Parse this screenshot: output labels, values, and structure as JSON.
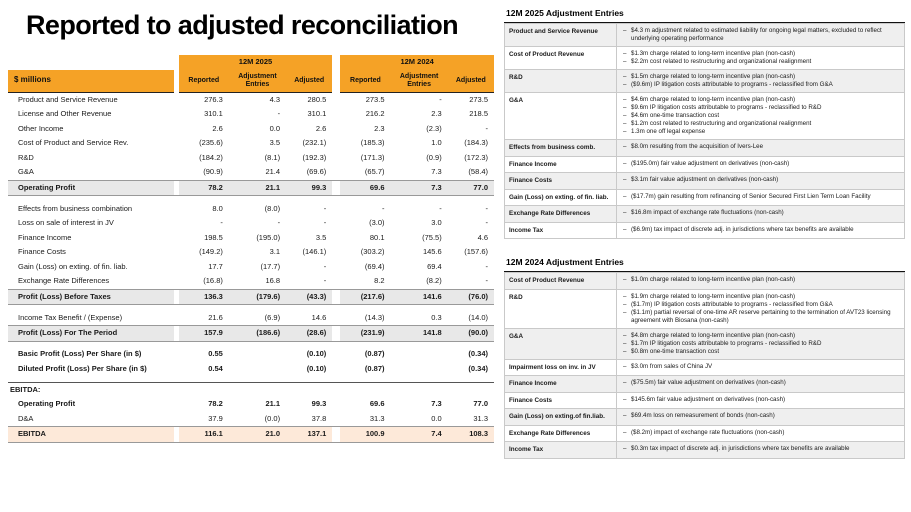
{
  "colors": {
    "accent_orange": "#F5A226",
    "subtotal_gray": "#E8E8E8",
    "ebitda_peach": "#FDE9D9",
    "panel_alt_gray": "#EFEFEF"
  },
  "title": "Reported to adjusted reconciliation",
  "table": {
    "unit_label": "$ millions",
    "groups": [
      {
        "period": "12M 2025"
      },
      {
        "period": "12M 2024"
      }
    ],
    "col_headers": [
      "Reported",
      "Adjustment Entries",
      "Adjusted"
    ],
    "rows": [
      {
        "label": "Product and Service Revenue",
        "style": "normal",
        "v": [
          "276.3",
          "4.3",
          "280.5",
          "273.5",
          "-",
          "273.5"
        ]
      },
      {
        "label": "License and Other Revenue",
        "style": "normal",
        "v": [
          "310.1",
          "-",
          "310.1",
          "216.2",
          "2.3",
          "218.5"
        ]
      },
      {
        "label": "Other Income",
        "style": "normal",
        "v": [
          "2.6",
          "0.0",
          "2.6",
          "2.3",
          "(2.3)",
          "-"
        ]
      },
      {
        "label": "Cost of Product and Service Rev.",
        "style": "normal",
        "v": [
          "(235.6)",
          "3.5",
          "(232.1)",
          "(185.3)",
          "1.0",
          "(184.3)"
        ]
      },
      {
        "label": "R&D",
        "style": "normal",
        "v": [
          "(184.2)",
          "(8.1)",
          "(192.3)",
          "(171.3)",
          "(0.9)",
          "(172.3)"
        ]
      },
      {
        "label": "G&A",
        "style": "normal",
        "v": [
          "(90.9)",
          "21.4",
          "(69.6)",
          "(65.7)",
          "7.3",
          "(58.4)"
        ]
      },
      {
        "label": "Operating Profit",
        "style": "subtotal",
        "v": [
          "78.2",
          "21.1",
          "99.3",
          "69.6",
          "7.3",
          "77.0"
        ]
      },
      {
        "label": "",
        "style": "spacer",
        "v": [
          "",
          "",
          "",
          "",
          "",
          ""
        ]
      },
      {
        "label": "Effects from business combination",
        "style": "normal",
        "v": [
          "8.0",
          "(8.0)",
          "-",
          "-",
          "-",
          "-"
        ]
      },
      {
        "label": "Loss on sale of interest in JV",
        "style": "normal",
        "v": [
          "-",
          "-",
          "-",
          "(3.0)",
          "3.0",
          "-"
        ]
      },
      {
        "label": "Finance Income",
        "style": "normal",
        "v": [
          "198.5",
          "(195.0)",
          "3.5",
          "80.1",
          "(75.5)",
          "4.6"
        ]
      },
      {
        "label": "Finance Costs",
        "style": "normal",
        "v": [
          "(149.2)",
          "3.1",
          "(146.1)",
          "(303.2)",
          "145.6",
          "(157.6)"
        ]
      },
      {
        "label": "Gain (Loss) on exting. of fin. liab.",
        "style": "normal",
        "v": [
          "17.7",
          "(17.7)",
          "-",
          "(69.4)",
          "69.4",
          "-"
        ]
      },
      {
        "label": "Exchange Rate Differences",
        "style": "normal",
        "v": [
          "(16.8)",
          "16.8",
          "-",
          "8.2",
          "(8.2)",
          "-"
        ]
      },
      {
        "label": "Profit (Loss) Before Taxes",
        "style": "subtotal",
        "v": [
          "136.3",
          "(179.6)",
          "(43.3)",
          "(217.6)",
          "141.6",
          "(76.0)"
        ]
      },
      {
        "label": "",
        "style": "spacer",
        "v": [
          "",
          "",
          "",
          "",
          "",
          ""
        ]
      },
      {
        "label": "Income Tax Benefit / (Expense)",
        "style": "normal",
        "v": [
          "21.6",
          "(6.9)",
          "14.6",
          "(14.3)",
          "0.3",
          "(14.0)"
        ]
      },
      {
        "label": "Profit (Loss) For The Period",
        "style": "subtotal",
        "v": [
          "157.9",
          "(186.6)",
          "(28.6)",
          "(231.9)",
          "141.8",
          "(90.0)"
        ]
      },
      {
        "label": "",
        "style": "spacer",
        "v": [
          "",
          "",
          "",
          "",
          "",
          ""
        ]
      },
      {
        "label": "Basic Profit (Loss) Per Share (in $)",
        "style": "pershare",
        "v": [
          "0.55",
          "",
          "(0.10)",
          "(0.87)",
          "",
          "(0.34)"
        ]
      },
      {
        "label": "Diluted Profit (Loss) Per Share (in $)",
        "style": "pershare",
        "v": [
          "0.54",
          "",
          "(0.10)",
          "(0.87)",
          "",
          "(0.34)"
        ]
      },
      {
        "label": "",
        "style": "spacer",
        "v": [
          "",
          "",
          "",
          "",
          "",
          ""
        ]
      },
      {
        "label": "EBITDA:",
        "style": "section",
        "v": [
          "",
          "",
          "",
          "",
          "",
          ""
        ]
      },
      {
        "label": "Operating Profit",
        "style": "bold",
        "v": [
          "78.2",
          "21.1",
          "99.3",
          "69.6",
          "7.3",
          "77.0"
        ]
      },
      {
        "label": "D&A",
        "style": "normal",
        "v": [
          "37.9",
          "(0.0)",
          "37.8",
          "31.3",
          "0.0",
          "31.3"
        ]
      },
      {
        "label": "EBITDA",
        "style": "ebitda",
        "v": [
          "116.1",
          "21.0",
          "137.1",
          "100.9",
          "7.4",
          "108.3"
        ]
      }
    ]
  },
  "panels": [
    {
      "title": "12M 2025 Adjustment Entries",
      "entries": [
        {
          "label": "Product and Service Revenue",
          "items": [
            "$4.3 m adjustment related to estimated liability for ongoing legal matters, excluded to reflect underlying operating performance"
          ]
        },
        {
          "label": "Cost of Product Revenue",
          "items": [
            "$1.3m charge related to long-term incentive plan (non-cash)",
            "$2.2m cost related to restructuring and organizational realignment"
          ]
        },
        {
          "label": "R&D",
          "items": [
            "$1.5m charge related to long-term incentive plan (non-cash)",
            "($9.6m) IP litigation costs attributable to programs - reclassified from G&A"
          ]
        },
        {
          "label": "G&A",
          "items": [
            "$4.6m charge related to long-term incentive plan (non-cash)",
            "$9.6m IP litigation costs attributable to programs - reclassified to R&D",
            "$4.6m one-time transaction cost",
            "$1.2m cost related to restructuring and organizational realignment",
            "1.3m one off legal expense"
          ]
        },
        {
          "label": "Effects from business comb.",
          "items": [
            "$8.0m resulting from the acquisition of Ivers-Lee"
          ]
        },
        {
          "label": "Finance Income",
          "items": [
            "($195.0m) fair value adjustment on derivatives (non-cash)"
          ]
        },
        {
          "label": "Finance Costs",
          "items": [
            "$3.1m fair value adjustment on derivatives (non-cash)"
          ]
        },
        {
          "label": "Gain (Loss) on exting. of fin. liab.",
          "items": [
            "($17.7m) gain resulting from refinancing of Senior Secured First Lien Term Loan Facility"
          ]
        },
        {
          "label": "Exchange Rate Differences",
          "items": [
            "$16.8m impact of exchange rate fluctuations (non-cash)"
          ]
        },
        {
          "label": "Income Tax",
          "items": [
            "($6.9m) tax impact of discrete adj. in jurisdictions where tax benefits are available"
          ]
        }
      ]
    },
    {
      "title": "12M 2024 Adjustment Entries",
      "entries": [
        {
          "label": "Cost of Product Revenue",
          "items": [
            "$1.0m charge related to long-term incentive plan (non-cash)"
          ]
        },
        {
          "label": "R&D",
          "items": [
            "$1.9m charge related to long-term incentive plan (non-cash)",
            "($1.7m) IP litigation costs attributable to programs - reclassified from G&A",
            "($1.1m) partial reversal of one-time AR reserve pertaining to the termination of AVT23 licensing agreement with Biosana (non-cash)"
          ]
        },
        {
          "label": "G&A",
          "items": [
            "$4.8m charge related to long-term incentive plan (non-cash)",
            "$1.7m IP litigation costs attributable to programs - reclassified to R&D",
            "$0.8m one-time transaction cost"
          ]
        },
        {
          "label": "Impairment loss on inv. in JV",
          "items": [
            "$3.0m from sales of China JV"
          ]
        },
        {
          "label": "Finance Income",
          "items": [
            "($75.5m) fair value adjustment on derivatives (non-cash)"
          ]
        },
        {
          "label": "Finance Costs",
          "items": [
            "$145.6m fair value adjustment on derivatives (non-cash)"
          ]
        },
        {
          "label": "Gain (Loss) on exting.of fin.liab.",
          "items": [
            "$69.4m loss on remeasurement of bonds (non-cash)"
          ]
        },
        {
          "label": "Exchange Rate Differences",
          "items": [
            "($8.2m) impact of exchange rate fluctuations (non-cash)"
          ]
        },
        {
          "label": "Income Tax",
          "items": [
            "$0.3m tax impact of discrete adj. in jurisdictions where tax benefits are available"
          ]
        }
      ]
    }
  ]
}
